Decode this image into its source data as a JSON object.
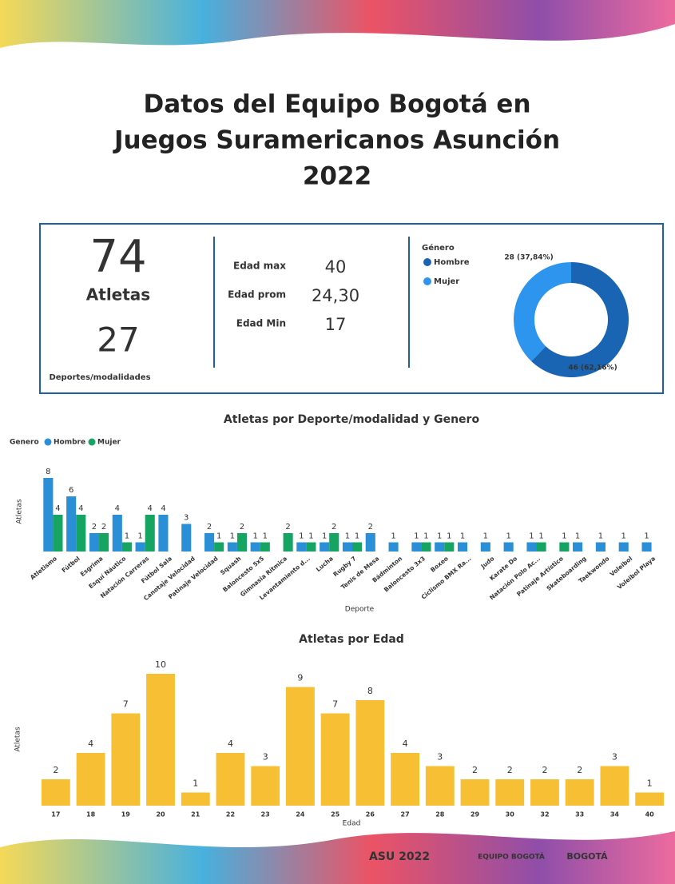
{
  "title": [
    "Datos del Equipo Bogotá en",
    "Juegos Suramericanos Asunción",
    "2022"
  ],
  "kpis": {
    "athletes": "74",
    "athletes_label": "Atletas",
    "sports": "27",
    "sports_label": "Deportes/modalidades",
    "ages": [
      {
        "label": "Edad max",
        "value": "40"
      },
      {
        "label": "Edad prom",
        "value": "24,30"
      },
      {
        "label": "Edad Min",
        "value": "17"
      }
    ]
  },
  "logos": [
    "ASU 2022",
    "EQUIPO BOGOTÁ",
    "BOGOTÁ"
  ],
  "chart_data": [
    {
      "type": "donut",
      "legend_title": "Género",
      "categories": [
        "Hombre",
        "Mujer"
      ],
      "values": [
        46,
        28
      ],
      "value_labels": [
        "46 (62,16%)",
        "28 (37,84%)"
      ],
      "colors": [
        "#1a64b4",
        "#2e95ef"
      ]
    },
    {
      "type": "grouped-bar",
      "title": "Atletas por Deporte/modalidad y Genero",
      "legend_title": "Genero",
      "y_label": "Atletas",
      "x_label": "Deporte",
      "categories": [
        "Atletismo",
        "Fútbol",
        "Esgrima",
        "Esquí Náutico",
        "Natación Carreras",
        "Fútbol Sala",
        "Canotaje Velocidad",
        "Patinaje Velocidad",
        "Squash",
        "Baloncesto 5x5",
        "Gimnasia Rítmica",
        "Levantamiento d...",
        "Lucha",
        "Rugby 7",
        "Tenis de Mesa",
        "Bádminton",
        "Baloncesto 3x3",
        "Boxeo",
        "Ciclismo BMX Ra...",
        "Judo",
        "Karate Do",
        "Natación Polo Ac...",
        "Patinaje Artístico",
        "Skateboarding",
        "Taekwondo",
        "Voleibol",
        "Voleibol Playa"
      ],
      "series": [
        {
          "name": "Hombre",
          "color": "#2a8fd6",
          "values": [
            8,
            6,
            2,
            4,
            1,
            4,
            3,
            2,
            1,
            1,
            null,
            1,
            1,
            1,
            2,
            1,
            1,
            1,
            1,
            1,
            1,
            1,
            null,
            1,
            1,
            1,
            1
          ]
        },
        {
          "name": "Mujer",
          "color": "#16a463",
          "values": [
            4,
            4,
            2,
            1,
            4,
            null,
            null,
            1,
            2,
            1,
            2,
            1,
            2,
            1,
            null,
            null,
            1,
            1,
            null,
            null,
            null,
            1,
            1,
            null,
            null,
            null,
            null
          ]
        }
      ]
    },
    {
      "type": "bar",
      "title": "Atletas por Edad",
      "y_label": "Atletas",
      "x_label": "Edad",
      "color": "#f7c034",
      "categories": [
        "17",
        "18",
        "19",
        "20",
        "21",
        "22",
        "23",
        "24",
        "25",
        "26",
        "27",
        "28",
        "29",
        "30",
        "32",
        "33",
        "34",
        "40"
      ],
      "values": [
        2,
        4,
        7,
        10,
        1,
        4,
        3,
        9,
        7,
        8,
        4,
        3,
        2,
        2,
        2,
        2,
        3,
        1
      ]
    }
  ]
}
